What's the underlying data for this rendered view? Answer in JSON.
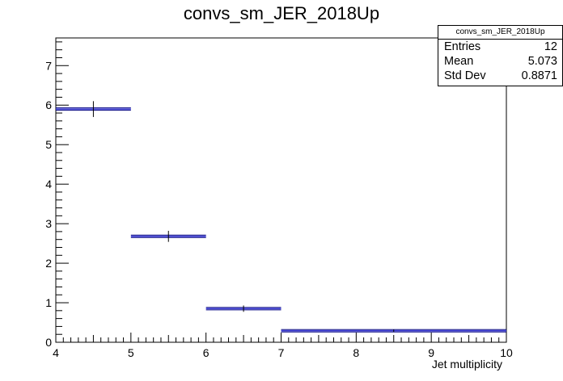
{
  "chart_data": {
    "type": "histogram",
    "title": "convs_sm_JER_2018Up",
    "xlabel": "Jet multiplicity",
    "ylabel": "",
    "xlim": [
      4,
      10
    ],
    "ylim": [
      0,
      7.7
    ],
    "x_ticks": [
      4,
      5,
      6,
      7,
      8,
      9,
      10
    ],
    "y_ticks": [
      0,
      1,
      2,
      3,
      4,
      5,
      6,
      7
    ],
    "grid": false,
    "bins": [
      {
        "x_low": 4,
        "x_high": 5,
        "value": 5.9,
        "error": 0.2
      },
      {
        "x_low": 5,
        "x_high": 6,
        "value": 2.68,
        "error": 0.14
      },
      {
        "x_low": 6,
        "x_high": 7,
        "value": 0.85,
        "error": 0.08
      },
      {
        "x_low": 7,
        "x_high": 10,
        "value": 0.29,
        "error": 0.03
      }
    ],
    "series_colors": {
      "outline": "#000080",
      "inner": "#3f3fd6",
      "error": "#000000"
    }
  },
  "stats": {
    "name": "convs_sm_JER_2018Up",
    "rows": [
      {
        "label": "Entries",
        "value": "12"
      },
      {
        "label": "Mean",
        "value": "5.073"
      },
      {
        "label": "Std Dev",
        "value": "0.8871"
      }
    ]
  }
}
